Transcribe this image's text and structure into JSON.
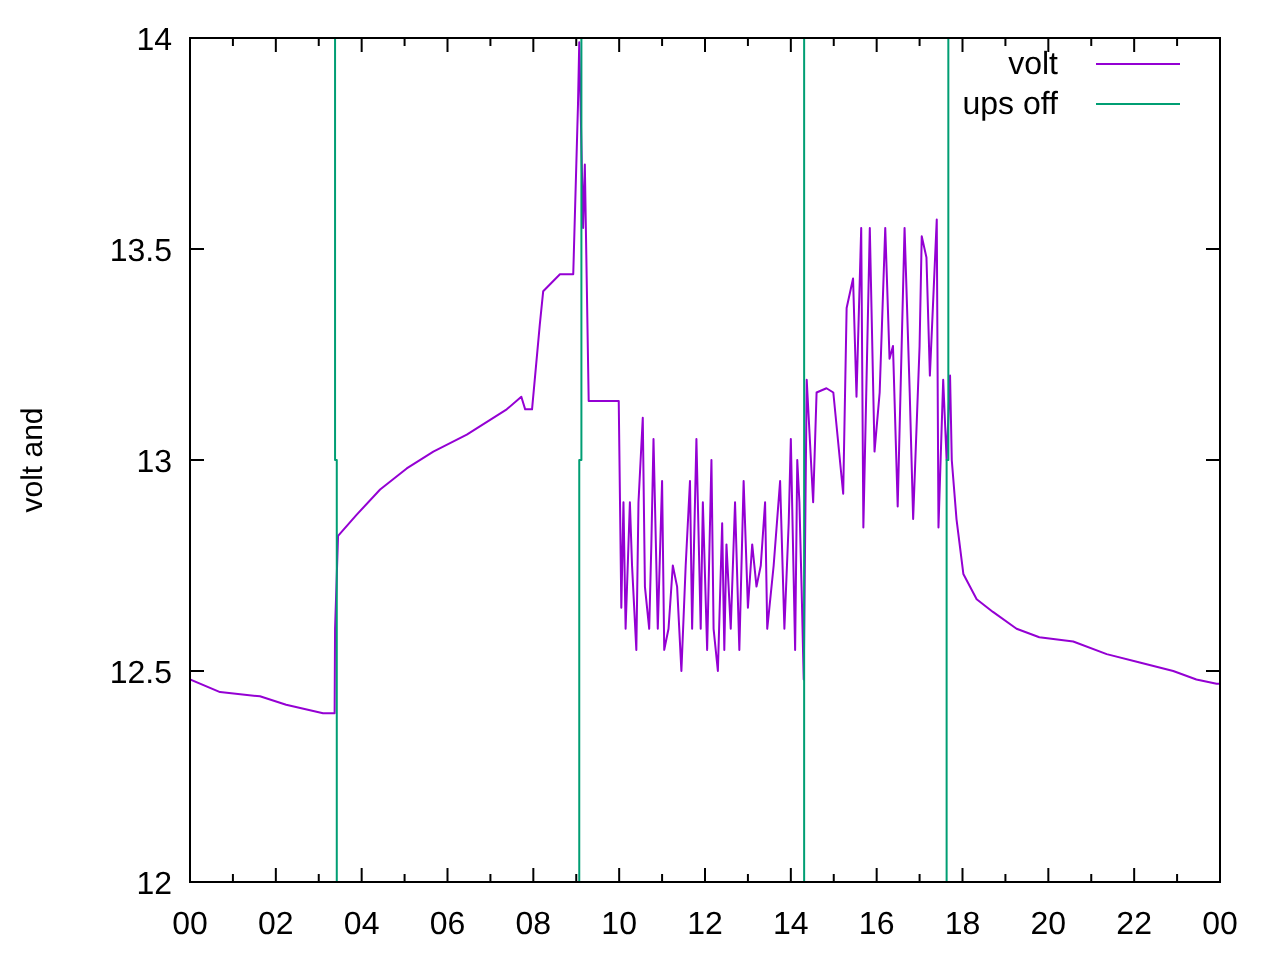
{
  "chart_data": {
    "type": "line",
    "ylabel": "volt and",
    "legend": "top right",
    "xlim": [
      0,
      24
    ],
    "xticks": [
      {
        "value": 0,
        "label": "00"
      },
      {
        "value": 1,
        "label": null
      },
      {
        "value": 2,
        "label": "02"
      },
      {
        "value": 3,
        "label": null
      },
      {
        "value": 4,
        "label": "04"
      },
      {
        "value": 5,
        "label": null
      },
      {
        "value": 6,
        "label": "06"
      },
      {
        "value": 7,
        "label": null
      },
      {
        "value": 8,
        "label": "08"
      },
      {
        "value": 9,
        "label": null
      },
      {
        "value": 10,
        "label": "10"
      },
      {
        "value": 11,
        "label": null
      },
      {
        "value": 12,
        "label": "12"
      },
      {
        "value": 13,
        "label": null
      },
      {
        "value": 14,
        "label": "14"
      },
      {
        "value": 15,
        "label": null
      },
      {
        "value": 16,
        "label": "16"
      },
      {
        "value": 17,
        "label": null
      },
      {
        "value": 18,
        "label": "18"
      },
      {
        "value": 19,
        "label": null
      },
      {
        "value": 20,
        "label": "20"
      },
      {
        "value": 21,
        "label": null
      },
      {
        "value": 22,
        "label": "22"
      },
      {
        "value": 23,
        "label": null
      },
      {
        "value": 24,
        "label": "00"
      }
    ],
    "ylim": [
      12,
      14
    ],
    "yticks": [
      12,
      12.5,
      13,
      13.5,
      14
    ],
    "series": [
      {
        "name": "volt",
        "color": "#9400d3",
        "x": [
          0,
          0.7,
          1.63,
          2.24,
          3.1,
          3.37,
          3.38,
          3.45,
          3.88,
          4.43,
          5.05,
          5.67,
          6.45,
          7.38,
          7.72,
          7.81,
          7.97,
          8.15,
          8.23,
          8.62,
          8.93,
          9.04,
          9.07,
          9.16,
          9.2,
          9.29,
          9.99,
          10.05,
          10.1,
          10.15,
          10.25,
          10.3,
          10.4,
          10.45,
          10.55,
          10.6,
          10.7,
          10.75,
          10.8,
          10.9,
          11.0,
          11.05,
          11.15,
          11.25,
          11.35,
          11.45,
          11.55,
          11.65,
          11.7,
          11.8,
          11.9,
          11.95,
          12.05,
          12.15,
          12.2,
          12.3,
          12.4,
          12.45,
          12.5,
          12.6,
          12.7,
          12.8,
          12.9,
          13.0,
          13.1,
          13.2,
          13.3,
          13.4,
          13.45,
          13.6,
          13.75,
          13.85,
          13.95,
          14.0,
          14.1,
          14.15,
          14.2,
          14.25,
          14.3,
          14.37,
          14.52,
          14.6,
          14.83,
          14.99,
          15.22,
          15.3,
          15.45,
          15.53,
          15.64,
          15.69,
          15.84,
          15.95,
          16.07,
          16.2,
          16.3,
          16.38,
          16.49,
          16.65,
          16.77,
          16.85,
          17.0,
          17.05,
          17.16,
          17.24,
          17.4,
          17.44,
          17.55,
          17.63,
          17.71,
          17.75,
          17.86,
          18.02,
          18.33,
          18.71,
          19.26,
          19.79,
          20.58,
          21.36,
          22.13,
          22.91,
          23.45,
          23.92,
          24
        ],
        "values": [
          12.48,
          12.45,
          12.44,
          12.42,
          12.4,
          12.4,
          12.6,
          12.82,
          12.87,
          12.93,
          12.98,
          13.02,
          13.06,
          13.12,
          13.15,
          13.12,
          13.12,
          13.32,
          13.4,
          13.44,
          13.44,
          13.84,
          13.99,
          13.55,
          13.7,
          13.14,
          13.14,
          12.65,
          12.9,
          12.6,
          12.9,
          12.75,
          12.55,
          12.9,
          13.1,
          12.7,
          12.6,
          12.8,
          13.05,
          12.6,
          12.95,
          12.55,
          12.6,
          12.75,
          12.7,
          12.5,
          12.75,
          12.95,
          12.6,
          13.05,
          12.6,
          12.9,
          12.55,
          13.0,
          12.6,
          12.5,
          12.85,
          12.55,
          12.8,
          12.6,
          12.9,
          12.55,
          12.95,
          12.65,
          12.8,
          12.7,
          12.75,
          12.9,
          12.6,
          12.75,
          12.95,
          12.6,
          12.85,
          13.05,
          12.55,
          13.0,
          12.9,
          12.7,
          12.48,
          13.19,
          12.9,
          13.16,
          13.17,
          13.16,
          12.92,
          13.36,
          13.43,
          13.15,
          13.55,
          12.84,
          13.55,
          13.02,
          13.16,
          13.55,
          13.24,
          13.27,
          12.89,
          13.55,
          13.16,
          12.86,
          13.27,
          13.53,
          13.48,
          13.2,
          13.57,
          12.84,
          13.19,
          13.0,
          13.2,
          13.0,
          12.86,
          12.73,
          12.67,
          12.64,
          12.6,
          12.58,
          12.57,
          12.54,
          12.52,
          12.5,
          12.48,
          12.47,
          12.47
        ]
      },
      {
        "name": "ups off",
        "color": "#009e73",
        "x": [
          3.38,
          3.38,
          3.42,
          3.42,
          null,
          9.07,
          9.07,
          9.12,
          9.12,
          null,
          14.31,
          14.31,
          null,
          17.63,
          17.63,
          17.67,
          17.67
        ],
        "values": [
          14,
          13,
          13,
          12,
          null,
          12,
          13,
          13,
          14,
          null,
          12,
          14,
          null,
          12,
          13,
          13,
          14
        ]
      }
    ]
  }
}
